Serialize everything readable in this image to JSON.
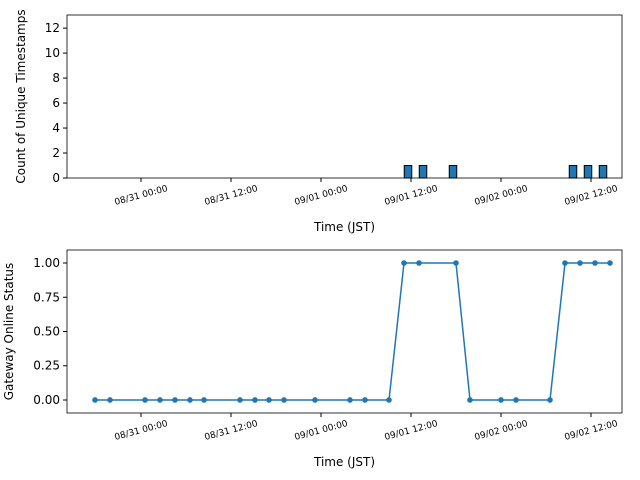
{
  "chart_data": [
    {
      "type": "bar",
      "x_label": "Time (JST)",
      "y_label": "Count of Unique Timestamps",
      "color": "#1f77b4",
      "edge_color": "#000000",
      "x": [
        "08/30 15:36",
        "08/30 17:36",
        "08/30 19:36",
        "08/30 21:36",
        "08/30 23:36",
        "08/31 01:36",
        "08/31 03:36",
        "08/31 05:36",
        "08/31 07:36",
        "08/31 09:36",
        "08/31 11:36",
        "08/31 13:36",
        "08/31 15:36",
        "08/31 17:36",
        "08/31 19:36",
        "08/31 21:36",
        "08/31 23:36",
        "09/01 01:36",
        "09/01 03:36",
        "09/01 05:36",
        "09/01 07:36",
        "09/01 09:36",
        "09/01 11:36",
        "09/01 13:36",
        "09/01 15:36",
        "09/01 17:36",
        "09/01 19:36",
        "09/01 21:36",
        "09/01 23:36",
        "09/02 01:36",
        "09/02 03:36",
        "09/02 05:36",
        "09/02 07:36",
        "09/02 09:36",
        "09/02 11:36",
        "09/02 13:36"
      ],
      "values": [
        0,
        0,
        0,
        0,
        0,
        0,
        0,
        0,
        0,
        0,
        0,
        0,
        0,
        0,
        0,
        0,
        0,
        0,
        0,
        0,
        0,
        0,
        1,
        1,
        0,
        1,
        0,
        0,
        0,
        0,
        0,
        0,
        0,
        1,
        1,
        1
      ],
      "xlim": [
        "08/30 14:08",
        "09/02 16:08"
      ],
      "xticks": [
        "08/31 00:00",
        "08/31 12:00",
        "09/01 00:00",
        "09/01 12:00",
        "09/02 00:00",
        "09/02 12:00"
      ],
      "ylim": [
        0,
        13.05
      ],
      "yticks": [
        0,
        2,
        4,
        6,
        8,
        10,
        12
      ]
    },
    {
      "type": "line",
      "x_label": "Time (JST)",
      "y_label": "Gateway Online Status",
      "color": "#1f77b4",
      "x": [
        "08/30 17:52",
        "08/30 19:52",
        "08/31 00:32",
        "08/31 02:32",
        "08/31 04:32",
        "08/31 06:32",
        "08/31 08:24",
        "08/31 13:12",
        "08/31 15:12",
        "08/31 17:04",
        "08/31 19:04",
        "08/31 23:12",
        "09/01 03:52",
        "09/01 05:52",
        "09/01 09:04",
        "09/01 11:04",
        "09/01 13:04",
        "09/01 18:00",
        "09/01 19:52",
        "09/02 00:00",
        "09/02 02:00",
        "09/02 06:32",
        "09/02 08:32",
        "09/02 10:32",
        "09/02 12:32",
        "09/02 14:32"
      ],
      "values": [
        0,
        0,
        0,
        0,
        0,
        0,
        0,
        0,
        0,
        0,
        0,
        0,
        0,
        0,
        0,
        1,
        1,
        1,
        0,
        0,
        0,
        0,
        1,
        1,
        1,
        1
      ],
      "xlim": [
        "08/30 14:08",
        "09/02 16:08"
      ],
      "xticks": [
        "08/31 00:00",
        "08/31 12:00",
        "09/01 00:00",
        "09/01 12:00",
        "09/02 00:00",
        "09/02 12:00"
      ],
      "ylim": [
        -0.095,
        1.095
      ],
      "yticks": [
        {
          "value": 0,
          "label": "0.00"
        },
        {
          "value": 0.25,
          "label": "0.25"
        },
        {
          "value": 0.5,
          "label": "0.50"
        },
        {
          "value": 0.75,
          "label": "0.75"
        },
        {
          "value": 1,
          "label": "1.00"
        }
      ]
    }
  ]
}
